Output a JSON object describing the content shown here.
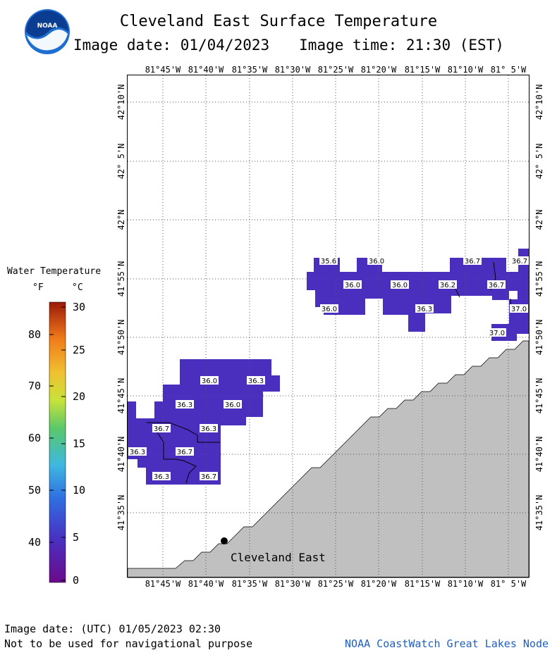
{
  "header": {
    "title": "Cleveland East Surface Temperature",
    "image_date": "Image date: 01/04/2023",
    "image_time": "Image time: 21:30 (EST)",
    "logo_text": "NOAA"
  },
  "map": {
    "longitude_labels": [
      "81°45'W",
      "81°40'W",
      "81°35'W",
      "81°30'W",
      "81°25'W",
      "81°20'W",
      "81°15'W",
      "81°10'W",
      "81° 5'W"
    ],
    "latitude_labels": [
      "42°10'N",
      "42° 5'N",
      "42°N",
      "41°55'N",
      "41°50'N",
      "41°45'N",
      "41°40'N",
      "41°35'N"
    ],
    "station": {
      "name": "Cleveland East"
    },
    "temperature_labels": [
      {
        "text": "35.6"
      },
      {
        "text": "36.0"
      },
      {
        "text": "36.7"
      },
      {
        "text": "36.7"
      },
      {
        "text": "36.0"
      },
      {
        "text": "36.0"
      },
      {
        "text": "36.2"
      },
      {
        "text": "36.7"
      },
      {
        "text": "36.0"
      },
      {
        "text": "36.3"
      },
      {
        "text": "37.0"
      },
      {
        "text": "37.0"
      },
      {
        "text": "36.0"
      },
      {
        "text": "36.3"
      },
      {
        "text": "36.3"
      },
      {
        "text": "36.0"
      },
      {
        "text": "36.7"
      },
      {
        "text": "36.3"
      },
      {
        "text": "36.3"
      },
      {
        "text": "36.7"
      },
      {
        "text": "36.3"
      },
      {
        "text": "36.7"
      }
    ],
    "colors": {
      "water": "#4a2fbf",
      "land": "#c0c0c0",
      "grid": "#555555"
    }
  },
  "legend": {
    "title": "Water Temperature",
    "unit_f": "°F",
    "unit_c": "°C",
    "fahrenheit_ticks": [
      "80",
      "70",
      "60",
      "50",
      "40"
    ],
    "celsius_ticks": [
      "30",
      "25",
      "20",
      "15",
      "10",
      "5",
      "0"
    ]
  },
  "footer": {
    "utc_date": "Image date: (UTC) 01/05/2023  02:30",
    "disclaimer": "Not to be used for navigational purpose",
    "credit": "NOAA CoastWatch Great Lakes Node"
  }
}
